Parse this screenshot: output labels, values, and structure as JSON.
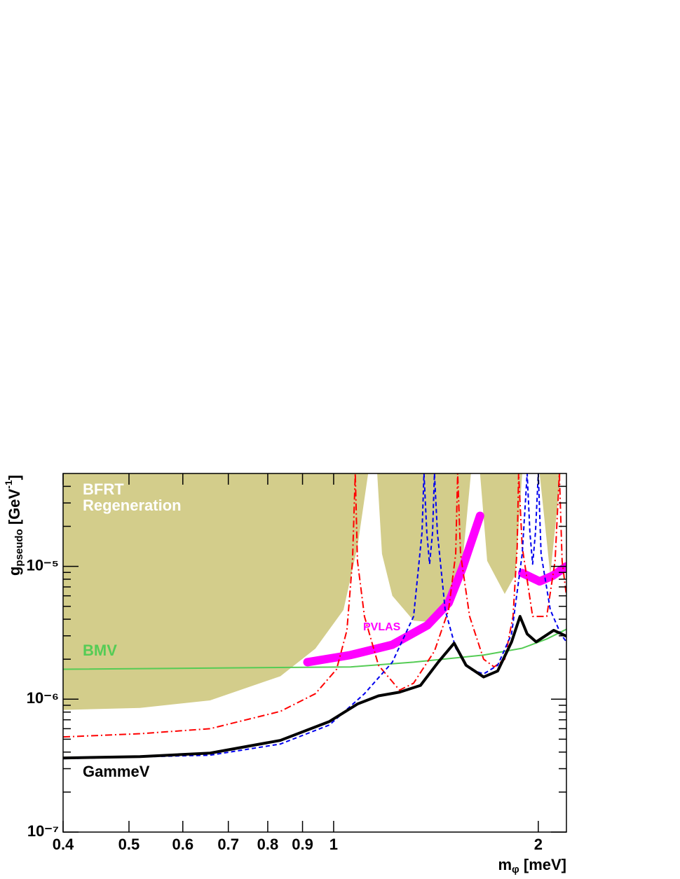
{
  "chart_data": {
    "type": "line",
    "xscale": "log",
    "yscale": "log",
    "xlim": [
      0.4,
      2.2
    ],
    "ylim": [
      1e-07,
      5e-05
    ],
    "xticks": [
      0.4,
      0.5,
      0.6,
      0.7,
      0.8,
      0.9,
      1,
      2
    ],
    "yticks": [
      {
        "value": 1e-07,
        "label": "10⁻⁷"
      },
      {
        "value": 1e-06,
        "label": "10⁻⁶"
      },
      {
        "value": 1e-05,
        "label": "10⁻⁵"
      }
    ],
    "yminorticks": [
      2e-07,
      3e-07,
      4e-07,
      5e-07,
      6e-07,
      7e-07,
      8e-07,
      9e-07,
      2e-06,
      3e-06,
      4e-06,
      5e-06,
      6e-06,
      7e-06,
      8e-06,
      9e-06,
      2e-05,
      3e-05,
      4e-05
    ],
    "xlabel": [
      "m",
      "φ",
      " [meV]"
    ],
    "ylabel": [
      "g",
      "pseudo",
      " [GeV",
      "-1",
      "]"
    ],
    "series": [
      {
        "name": "BFRT Regeneration",
        "kind": "area",
        "fill": "above",
        "color": "#d3cd8b",
        "x": [
          0.4,
          0.519,
          0.658,
          0.835,
          0.94,
          1.034,
          1.084,
          1.124,
          null,
          1.159,
          1.178,
          1.22,
          1.311,
          1.391,
          1.476,
          1.548,
          1.592,
          null,
          1.642,
          1.682,
          1.785,
          1.85,
          1.894,
          null,
          2.009,
          2.083,
          2.158
        ],
        "values": [
          8.3e-07,
          8.6e-07,
          9.8e-07,
          1.49e-06,
          2.4e-06,
          4.7e-06,
          1.4e-05,
          5e-05,
          null,
          5e-05,
          1.24e-05,
          6e-06,
          3.9e-06,
          3.8e-06,
          5.3e-06,
          1.1e-05,
          5e-05,
          null,
          5e-05,
          1.1e-05,
          6.2e-06,
          8.6e-06,
          5e-05,
          null,
          5e-05,
          8.6e-06,
          5e-05
        ]
      },
      {
        "name": "BMV",
        "kind": "line",
        "color": "#55cc55",
        "width": 2,
        "style": "solid",
        "x": [
          0.4,
          1.059,
          1.311,
          1.662,
          1.894,
          2.058,
          2.2
        ],
        "values": [
          1.68e-06,
          1.75e-06,
          1.9e-06,
          2.15e-06,
          2.42e-06,
          2.84e-06,
          3.36e-06
        ]
      },
      {
        "name": "PVLAS",
        "kind": "line",
        "color": "#ff00ff",
        "width": 12,
        "style": "solid",
        "x": [
          0.915,
          1.059,
          1.22,
          1.374,
          1.476,
          1.548,
          1.642,
          null,
          1.894,
          2.009,
          2.1,
          2.2
        ],
        "values": [
          1.9e-06,
          2.15e-06,
          2.57e-06,
          3.6e-06,
          5.3e-06,
          9.8e-06,
          2.4e-05,
          null,
          8.9e-06,
          7.7e-06,
          8.5e-06,
          1e-05
        ]
      },
      {
        "kind": "line",
        "color": "#ff0000",
        "width": 2,
        "style": "dashdot",
        "x": [
          0.4,
          0.519,
          0.658,
          0.835,
          0.94,
          1.01,
          1.046,
          1.066,
          1.076,
          1.084,
          1.11,
          1.164,
          1.25,
          1.311,
          1.407,
          1.476,
          1.512,
          1.522,
          1.537,
          1.585,
          1.662,
          1.722,
          1.785,
          1.836,
          1.862,
          1.871,
          1.894,
          1.962,
          2.058,
          2.117,
          2.148,
          2.168,
          2.2
        ],
        "values": [
          5.2e-07,
          5.5e-07,
          6e-07,
          8.1e-07,
          1.1e-06,
          1.68e-06,
          3.3e-06,
          1.1e-05,
          5e-05,
          1.1e-05,
          4.2e-06,
          1.8e-06,
          1.17e-06,
          1.32e-06,
          2.3e-06,
          4.7e-06,
          1.24e-05,
          5e-05,
          1.24e-05,
          4.2e-06,
          2e-06,
          1.75e-06,
          2e-06,
          4.2e-06,
          1.4e-05,
          5e-05,
          1.4e-05,
          4.2e-06,
          4.2e-06,
          1.1e-05,
          5e-05,
          1.1e-05,
          6e-06
        ]
      },
      {
        "kind": "line",
        "color": "#0000ee",
        "width": 2,
        "style": "dashed",
        "x": [
          0.4,
          0.658,
          0.835,
          0.986,
          1.11,
          1.22,
          1.311,
          1.349,
          1.358,
          1.371,
          1.384,
          1.398,
          1.407,
          1.421,
          1.459,
          1.512,
          1.585,
          1.662,
          1.743,
          1.827,
          1.894,
          1.926,
          1.944,
          1.962,
          1.981,
          2.0,
          2.019,
          2.083,
          2.158,
          2.2
        ],
        "values": [
          3.57e-07,
          3.79e-07,
          4.6e-07,
          6.4e-07,
          1.1e-06,
          1.9e-06,
          4.2e-06,
          1.8e-05,
          5e-05,
          1.8e-05,
          1.04e-05,
          1.8e-05,
          5e-05,
          1.8e-05,
          4.7e-06,
          2.42e-06,
          1.68e-06,
          1.55e-06,
          1.8e-06,
          3.1e-06,
          1.24e-05,
          5e-05,
          1.8e-05,
          1.04e-05,
          1.8e-05,
          5e-05,
          1.24e-05,
          4.7e-06,
          3.1e-06,
          2.7e-06
        ]
      },
      {
        "name": "GammeV",
        "kind": "line",
        "color": "#000000",
        "width": 4,
        "style": "solid",
        "x": [
          0.4,
          0.519,
          0.658,
          0.835,
          0.986,
          1.084,
          1.164,
          1.25,
          1.342,
          1.425,
          1.504,
          1.566,
          1.662,
          1.743,
          1.827,
          1.88,
          1.926,
          1.986,
          2.107,
          2.2
        ],
        "values": [
          3.61e-07,
          3.7e-07,
          3.93e-07,
          4.9e-07,
          6.8e-07,
          9.2e-07,
          1.06e-06,
          1.13e-06,
          1.27e-06,
          1.9e-06,
          2.64e-06,
          1.8e-06,
          1.47e-06,
          1.63e-06,
          2.7e-06,
          4.2e-06,
          3.1e-06,
          2.7e-06,
          3.3e-06,
          2.98e-06
        ]
      }
    ],
    "annotations": [
      {
        "text": "BFRT",
        "color": "#ffffff"
      },
      {
        "text": "Regeneration",
        "color": "#ffffff"
      },
      {
        "text": "BMV",
        "color": "#55cc55"
      },
      {
        "text": "PVLAS",
        "color": "#ff00ff"
      },
      {
        "text": "GammeV",
        "color": "#000000"
      }
    ]
  }
}
